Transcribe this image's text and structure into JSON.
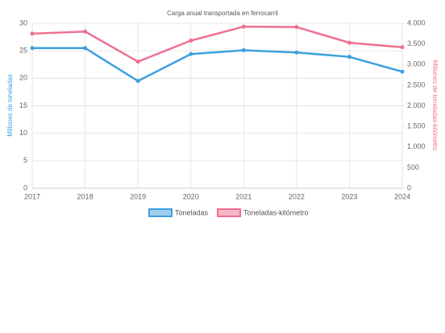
{
  "chart_data": {
    "type": "line",
    "title": "Carga anual transportada en ferrocarril",
    "categories": [
      "2017",
      "2018",
      "2019",
      "2020",
      "2021",
      "2022",
      "2023",
      "2024"
    ],
    "y_label": "Millones de toneladas",
    "y2_label": "Millones de toneladas-kilómetro",
    "series": [
      {
        "name": "Toneladas",
        "color": "#3ea0dd",
        "values": [
          25.5,
          25.5,
          19.5,
          24.4,
          25.1,
          24.7,
          23.9,
          21.2
        ]
      },
      {
        "name": "Toneladas-kilómetro",
        "color": "#ef6f8f",
        "axis": "y2",
        "values": [
          3750,
          3800,
          3070,
          3580,
          3920,
          3910,
          3530,
          3420
        ]
      }
    ],
    "ylim": [
      0,
      30
    ],
    "yticks": [
      0,
      5,
      10,
      15,
      20,
      25,
      30
    ],
    "y2lim": [
      0,
      4000
    ],
    "y2ticks": [
      0,
      500,
      {
        "value": 1000,
        "label": "1.000"
      },
      {
        "value": 1500,
        "label": "1.500"
      },
      {
        "value": 2000,
        "label": "2.000"
      },
      {
        "value": 2500,
        "label": "2.500"
      },
      {
        "value": 3000,
        "label": "3.000"
      },
      {
        "value": 3500,
        "label": "3.500"
      },
      {
        "value": 4000,
        "label": "4.000"
      }
    ],
    "grid": true,
    "legend": "bottom"
  }
}
